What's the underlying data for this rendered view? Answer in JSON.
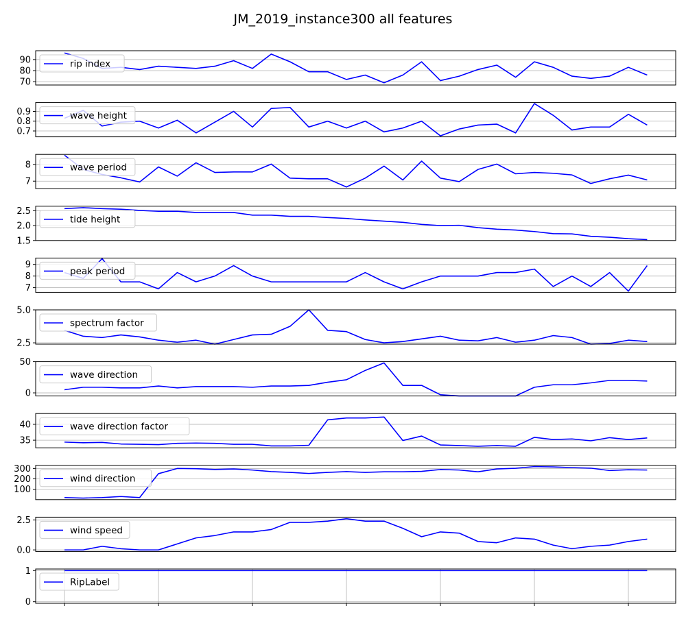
{
  "figure_title": "JM_2019_instance300 all features",
  "chart_data": [
    {
      "type": "line",
      "legend_position": "upper-left",
      "grid": "horizontal",
      "series": [
        {
          "name": "rip index",
          "color": "#0000ff",
          "values": [
            96,
            91,
            82,
            83,
            81,
            84,
            83,
            82,
            84,
            89,
            82,
            95,
            88,
            79,
            79,
            72,
            76,
            69,
            76,
            88,
            71,
            75,
            81,
            85,
            74,
            88,
            83,
            75,
            73,
            75,
            83,
            76
          ]
        }
      ],
      "yticks": [
        70,
        80,
        90
      ],
      "ylim": [
        67,
        98
      ]
    },
    {
      "type": "line",
      "legend_position": "upper-left",
      "grid": "horizontal",
      "series": [
        {
          "name": "wave height",
          "color": "#0000ff",
          "values": [
            0.83,
            0.91,
            0.75,
            0.79,
            0.8,
            0.73,
            0.81,
            0.68,
            0.79,
            0.9,
            0.74,
            0.93,
            0.94,
            0.74,
            0.8,
            0.73,
            0.8,
            0.69,
            0.73,
            0.8,
            0.65,
            0.72,
            0.76,
            0.77,
            0.68,
            0.98,
            0.86,
            0.71,
            0.74,
            0.74,
            0.87,
            0.76
          ]
        }
      ],
      "yticks": [
        0.7,
        0.8,
        0.9
      ],
      "ylim": [
        0.64,
        0.99
      ]
    },
    {
      "type": "line",
      "legend_position": "upper-left",
      "grid": "horizontal",
      "series": [
        {
          "name": "wave period",
          "color": "#0000ff",
          "values": [
            8.55,
            7.7,
            7.4,
            7.2,
            6.95,
            7.85,
            7.3,
            8.1,
            7.52,
            7.55,
            7.55,
            8.02,
            7.18,
            7.14,
            7.14,
            6.65,
            7.18,
            7.9,
            7.07,
            8.2,
            7.18,
            6.97,
            7.7,
            8.02,
            7.44,
            7.52,
            7.47,
            7.37,
            6.86,
            7.14,
            7.36,
            7.07
          ]
        }
      ],
      "yticks": [
        7,
        8
      ],
      "ylim": [
        6.55,
        8.6
      ]
    },
    {
      "type": "line",
      "legend_position": "upper-left",
      "grid": "horizontal",
      "series": [
        {
          "name": "tide height",
          "color": "#0000ff",
          "values": [
            2.57,
            2.6,
            2.57,
            2.55,
            2.51,
            2.48,
            2.48,
            2.44,
            2.44,
            2.44,
            2.35,
            2.35,
            2.31,
            2.31,
            2.27,
            2.24,
            2.19,
            2.15,
            2.11,
            2.04,
            2.0,
            2.01,
            1.93,
            1.88,
            1.85,
            1.8,
            1.73,
            1.72,
            1.64,
            1.61,
            1.56,
            1.53
          ]
        }
      ],
      "yticks": [
        1.5,
        2.0,
        2.5
      ],
      "ylim": [
        1.5,
        2.65
      ]
    },
    {
      "type": "line",
      "legend_position": "upper-left",
      "grid": "horizontal",
      "series": [
        {
          "name": "peak period",
          "color": "#0000ff",
          "values": [
            8.3,
            7.8,
            9.5,
            7.5,
            7.5,
            6.9,
            8.3,
            7.5,
            8.0,
            8.9,
            8.0,
            7.5,
            7.5,
            7.5,
            7.5,
            7.5,
            8.3,
            7.5,
            6.9,
            7.5,
            8.0,
            8.0,
            8.0,
            8.3,
            8.3,
            8.6,
            7.1,
            8.0,
            7.1,
            8.3,
            6.7,
            8.9
          ]
        }
      ],
      "yticks": [
        7,
        8,
        9
      ],
      "ylim": [
        6.6,
        9.55
      ]
    },
    {
      "type": "line",
      "legend_position": "upper-left",
      "grid": "horizontal",
      "series": [
        {
          "name": "spectrum factor",
          "color": "#0000ff",
          "values": [
            3.45,
            3.0,
            2.9,
            3.1,
            2.95,
            2.7,
            2.55,
            2.7,
            2.4,
            2.75,
            3.1,
            3.15,
            3.75,
            5.0,
            3.45,
            3.35,
            2.75,
            2.5,
            2.6,
            2.8,
            3.0,
            2.7,
            2.65,
            2.9,
            2.55,
            2.7,
            3.05,
            2.9,
            2.4,
            2.45,
            2.7,
            2.6
          ]
        }
      ],
      "yticks": [
        2.5,
        5.0
      ],
      "ylim": [
        2.4,
        5.0
      ]
    },
    {
      "type": "line",
      "legend_position": "upper-left",
      "grid": "horizontal",
      "series": [
        {
          "name": "wave direction",
          "color": "#0000ff",
          "values": [
            5,
            9,
            9,
            8,
            8,
            11,
            8,
            10,
            10,
            10,
            9,
            11,
            11,
            12,
            17,
            21,
            36,
            48,
            12,
            12,
            -3,
            -5,
            -5,
            -5,
            -5,
            9,
            13,
            13,
            16,
            20,
            20,
            19
          ]
        }
      ],
      "yticks": [
        0,
        50
      ],
      "ylim": [
        -5,
        50
      ]
    },
    {
      "type": "line",
      "legend_position": "upper-left",
      "grid": "horizontal",
      "series": [
        {
          "name": "wave direction factor",
          "color": "#0000ff",
          "values": [
            34.4,
            34.2,
            34.3,
            33.8,
            33.7,
            33.6,
            34.0,
            34.1,
            34.0,
            33.7,
            33.7,
            33.2,
            33.2,
            33.4,
            41.4,
            42.0,
            42.0,
            42.3,
            34.9,
            36.3,
            33.5,
            33.3,
            33.1,
            33.3,
            33.1,
            35.9,
            35.2,
            35.4,
            34.8,
            35.8,
            35.2,
            35.7
          ]
        }
      ],
      "yticks": [
        35,
        40
      ],
      "ylim": [
        32.6,
        43.4
      ]
    },
    {
      "type": "line",
      "legend_position": "upper-left",
      "grid": "horizontal",
      "series": [
        {
          "name": "wind direction",
          "color": "#0000ff",
          "values": [
            20,
            15,
            20,
            30,
            20,
            250,
            300,
            298,
            290,
            295,
            285,
            270,
            262,
            252,
            262,
            270,
            262,
            268,
            268,
            272,
            290,
            285,
            268,
            295,
            302,
            318,
            315,
            308,
            303,
            280,
            288,
            285
          ]
        }
      ],
      "yticks": [
        100,
        200,
        300
      ],
      "ylim": [
        0,
        330
      ]
    },
    {
      "type": "line",
      "legend_position": "upper-left",
      "grid": "horizontal",
      "series": [
        {
          "name": "wind speed",
          "color": "#0000ff",
          "values": [
            0.0,
            0.0,
            0.3,
            0.1,
            0.0,
            0.0,
            0.5,
            1.0,
            1.2,
            1.5,
            1.5,
            1.7,
            2.3,
            2.3,
            2.4,
            2.6,
            2.4,
            2.4,
            1.8,
            1.1,
            1.5,
            1.4,
            0.7,
            0.6,
            1.0,
            0.9,
            0.4,
            0.1,
            0.3,
            0.4,
            0.7,
            0.9
          ]
        }
      ],
      "yticks": [
        0.0,
        2.5
      ],
      "ylim": [
        -0.13,
        2.73
      ]
    },
    {
      "type": "line",
      "legend_position": "upper-left",
      "grid": "both",
      "series": [
        {
          "name": "RipLabel",
          "color": "#0000ff",
          "values": [
            1,
            1,
            1,
            1,
            1,
            1,
            1,
            1,
            1,
            1,
            1,
            1,
            1,
            1,
            1,
            1,
            1,
            1,
            1,
            1,
            1,
            1,
            1,
            1,
            1,
            1,
            1,
            1,
            1,
            1,
            1,
            1
          ]
        }
      ],
      "yticks": [
        0,
        1
      ],
      "ylim": [
        -0.05,
        1.05
      ]
    }
  ]
}
